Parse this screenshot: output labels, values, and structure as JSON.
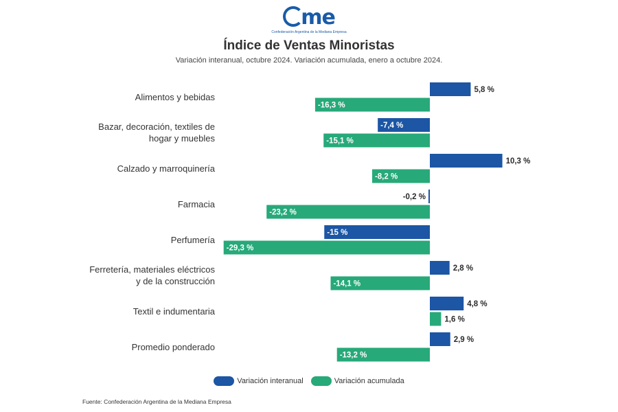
{
  "logo": {
    "word": "me",
    "tagline": "Confederación Argentina de la Mediana Empresa"
  },
  "header": {
    "title": "Índice de Ventas Minoristas",
    "subtitle": "Variación interanual, octubre 2024. Variación acumulada, enero a octubre 2024."
  },
  "colors": {
    "interanual": "#1c56a4",
    "acumulada": "#27a97a",
    "label_dark": "#2b2b2b",
    "label_light": "#ffffff"
  },
  "chart_data": {
    "type": "bar",
    "orientation": "horizontal",
    "title": "Índice de Ventas Minoristas",
    "subtitle": "Variación interanual, octubre 2024. Variación acumulada, enero a octubre 2024.",
    "categories": [
      [
        "Alimentos y bebidas"
      ],
      [
        "Bazar, decoración, textiles de",
        "hogar y muebles"
      ],
      [
        "Calzado y marroquinería"
      ],
      [
        "Farmacia"
      ],
      [
        "Perfumería"
      ],
      [
        "Ferretería, materiales eléctricos",
        "y de la construcción"
      ],
      [
        "Textil e indumentaria"
      ],
      [
        "Promedio ponderado"
      ]
    ],
    "series": [
      {
        "name": "Variación interanual",
        "color": "#1c56a4",
        "values": [
          5.8,
          -7.4,
          10.3,
          -0.2,
          -15,
          2.8,
          4.8,
          2.9
        ],
        "labels": [
          "5,8 %",
          "-7,4 %",
          "10,3 %",
          "-0,2 %",
          "-15 %",
          "2,8 %",
          "4,8 %",
          "2,9 %"
        ]
      },
      {
        "name": "Variación acumulada",
        "color": "#27a97a",
        "values": [
          -16.3,
          -15.1,
          -8.2,
          -23.2,
          -29.3,
          -14.1,
          1.6,
          -13.2
        ],
        "labels": [
          "-16,3 %",
          "-15,1 %",
          "-8,2 %",
          "-23,2 %",
          "-29,3 %",
          "-14,1 %",
          "1,6 %",
          "-13,2 %"
        ]
      }
    ],
    "unit": "%",
    "xlim": [
      -29.3,
      10.3
    ],
    "grid": false,
    "legend_position": "bottom-center"
  },
  "legend": {
    "interanual": "Variación interanual",
    "acumulada": "Variación acumulada"
  },
  "source": "Fuente: Confederación Argentina de la Mediana Empresa"
}
